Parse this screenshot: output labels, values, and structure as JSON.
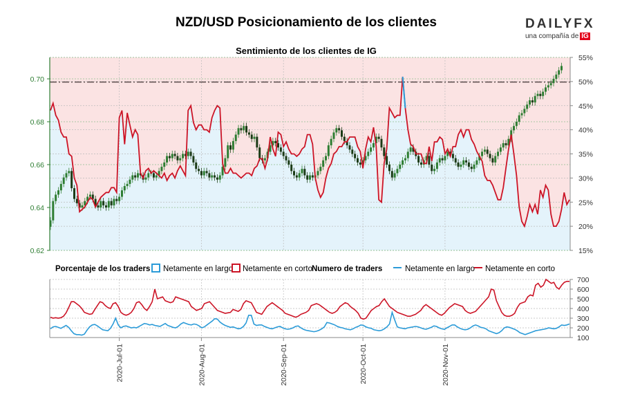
{
  "header": {
    "title": "NZD/USD Posicionamiento de los clientes",
    "subtitle": "Sentimiento de los clientes de IG",
    "logo_word": "DAILYFX",
    "logo_sub": "una compañía de",
    "logo_ig": "IG"
  },
  "colors": {
    "long": "#2b9bd8",
    "short": "#cc1426",
    "candle_up": "#2e7d32",
    "candle_down": "#1b3b16",
    "long_fill": "#e4f3fb",
    "short_fill": "#fbe3e3",
    "left_axis": "#2e7d32"
  },
  "chart_data": [
    {
      "type": "candlestick",
      "title": "Sentimiento de los clientes de IG",
      "left_axis": {
        "ticks": [
          "0.70",
          "0.68",
          "0.66",
          "0.64",
          "0.62"
        ],
        "ylim": [
          0.62,
          0.71
        ]
      },
      "right_axis": {
        "ticks": [
          "55%",
          "50%",
          "45%",
          "40%",
          "35%",
          "30%",
          "25%",
          "20%",
          "15%"
        ],
        "ylim": [
          15,
          55
        ]
      },
      "x_ticks": [
        "2020-Jul-01",
        "2020-Aug-01",
        "2020-Sep-01",
        "2020-Oct-01",
        "2020-Nov-01"
      ],
      "grid": true,
      "reference_line_price": 0.6985,
      "short_percent": [
        44,
        45.5,
        43,
        42,
        39.5,
        38.5,
        38.5,
        35,
        34.5,
        30,
        28.5,
        23,
        23.5,
        24,
        25,
        26,
        25.5,
        24,
        25,
        26,
        26.5,
        27,
        27,
        28,
        28,
        27,
        42.5,
        44,
        37,
        43.5,
        41,
        38.5,
        40,
        39,
        31,
        30,
        31.5,
        32,
        31,
        31.5,
        31,
        30.5,
        30,
        31,
        29.5,
        30.5,
        31,
        30,
        31.5,
        32.5,
        31.5,
        30.5,
        44,
        45,
        41.5,
        40,
        41,
        41,
        40,
        40,
        39.5,
        42.5,
        44,
        45,
        44.5,
        33,
        31,
        31,
        32,
        31,
        31,
        30.5,
        30,
        30.5,
        31,
        31,
        30.5,
        32,
        32.5,
        34,
        34,
        32,
        34,
        38.5,
        36,
        34.5,
        39.5,
        39,
        36.5,
        37.5,
        36,
        35,
        35,
        34.5,
        35,
        36,
        36.5,
        39,
        39,
        37,
        30,
        27.5,
        26,
        27,
        30,
        32,
        33,
        35,
        35.5,
        36.5,
        36.5,
        37.5,
        37.5,
        38.5,
        38.5,
        38.5,
        36.5,
        35.5,
        32,
        36,
        38.5,
        37.5,
        40.5,
        36.5,
        25.5,
        25,
        33,
        36,
        44.5,
        43.5,
        42.5,
        43,
        43,
        51,
        44.5,
        40,
        37,
        36.5,
        35,
        35,
        35,
        33,
        33,
        36.5,
        33.5,
        37.5,
        37.5,
        38.5,
        38,
        35,
        36,
        34.5,
        36.5,
        36.5,
        39,
        40,
        38.5,
        40,
        40,
        38,
        37,
        35.5,
        34.5,
        33.5,
        30.5,
        29.5,
        29.5,
        28.5,
        27,
        25.5,
        25.5,
        28,
        32,
        36,
        39,
        35,
        30.5,
        24,
        21,
        20,
        22,
        24.5,
        23,
        24.5,
        22.5,
        27.5,
        26,
        28.5,
        27.5,
        22.5,
        20,
        20,
        21,
        23.5,
        27,
        24.5,
        25.5
      ],
      "ohlc_close": [
        0.634,
        0.643,
        0.646,
        0.648,
        0.651,
        0.654,
        0.656,
        0.657,
        0.649,
        0.644,
        0.642,
        0.64,
        0.641,
        0.643,
        0.645,
        0.646,
        0.644,
        0.641,
        0.64,
        0.643,
        0.641,
        0.64,
        0.643,
        0.641,
        0.644,
        0.643,
        0.645,
        0.648,
        0.65,
        0.651,
        0.653,
        0.655,
        0.654,
        0.656,
        0.655,
        0.653,
        0.654,
        0.656,
        0.656,
        0.654,
        0.655,
        0.657,
        0.659,
        0.661,
        0.664,
        0.663,
        0.665,
        0.664,
        0.662,
        0.663,
        0.665,
        0.664,
        0.666,
        0.664,
        0.661,
        0.658,
        0.657,
        0.655,
        0.657,
        0.656,
        0.654,
        0.655,
        0.654,
        0.653,
        0.655,
        0.659,
        0.663,
        0.669,
        0.667,
        0.671,
        0.674,
        0.677,
        0.676,
        0.678,
        0.675,
        0.674,
        0.672,
        0.673,
        0.668,
        0.663,
        0.662,
        0.663,
        0.666,
        0.669,
        0.671,
        0.67,
        0.668,
        0.666,
        0.664,
        0.662,
        0.66,
        0.657,
        0.655,
        0.654,
        0.656,
        0.658,
        0.655,
        0.653,
        0.655,
        0.654,
        0.655,
        0.657,
        0.659,
        0.662,
        0.664,
        0.669,
        0.672,
        0.675,
        0.677,
        0.676,
        0.673,
        0.671,
        0.669,
        0.667,
        0.665,
        0.663,
        0.661,
        0.66,
        0.662,
        0.664,
        0.666,
        0.668,
        0.67,
        0.673,
        0.672,
        0.668,
        0.664,
        0.66,
        0.657,
        0.654,
        0.656,
        0.658,
        0.66,
        0.662,
        0.663,
        0.666,
        0.668,
        0.666,
        0.664,
        0.661,
        0.66,
        0.662,
        0.664,
        0.66,
        0.657,
        0.658,
        0.661,
        0.663,
        0.662,
        0.664,
        0.666,
        0.665,
        0.663,
        0.661,
        0.659,
        0.66,
        0.662,
        0.661,
        0.659,
        0.658,
        0.66,
        0.662,
        0.664,
        0.666,
        0.667,
        0.665,
        0.663,
        0.661,
        0.664,
        0.666,
        0.668,
        0.67,
        0.669,
        0.672,
        0.676,
        0.678,
        0.68,
        0.683,
        0.684,
        0.686,
        0.688,
        0.69,
        0.689,
        0.692,
        0.693,
        0.692,
        0.694,
        0.696,
        0.697,
        0.698,
        0.7,
        0.702,
        0.704,
        0.706
      ]
    },
    {
      "type": "line",
      "legend_percent": {
        "title": "Porcentaje de los traders",
        "long_label": "Netamente en largo",
        "short_label": "Netamente en corto"
      },
      "legend_count": {
        "title": "Numero de traders",
        "long_label": "Netamente en largo",
        "short_label": "Netamente en corto"
      },
      "right_axis": {
        "ticks": [
          "700",
          "600",
          "500",
          "400",
          "300",
          "200",
          "100"
        ],
        "ylim": [
          100,
          700
        ]
      },
      "series": [
        {
          "name": "Netamente en largo",
          "values": [
            190,
            210,
            215,
            205,
            195,
            210,
            225,
            205,
            170,
            140,
            130,
            130,
            125,
            135,
            175,
            210,
            230,
            235,
            220,
            200,
            180,
            175,
            170,
            195,
            240,
            300,
            230,
            200,
            215,
            220,
            210,
            200,
            205,
            200,
            215,
            230,
            245,
            240,
            230,
            235,
            225,
            220,
            215,
            230,
            245,
            225,
            215,
            205,
            200,
            215,
            240,
            255,
            245,
            235,
            230,
            240,
            235,
            220,
            200,
            210,
            230,
            250,
            270,
            295,
            290,
            260,
            240,
            225,
            215,
            205,
            210,
            200,
            190,
            195,
            215,
            250,
            330,
            330,
            240,
            225,
            230,
            230,
            215,
            205,
            195,
            190,
            200,
            210,
            215,
            200,
            190,
            185,
            190,
            200,
            215,
            220,
            200,
            185,
            175,
            170,
            165,
            160,
            165,
            175,
            190,
            210,
            255,
            250,
            240,
            230,
            215,
            205,
            200,
            190,
            185,
            180,
            190,
            205,
            215,
            230,
            225,
            210,
            200,
            195,
            180,
            175,
            170,
            175,
            190,
            210,
            240,
            360,
            280,
            210,
            200,
            195,
            190,
            200,
            205,
            210,
            215,
            210,
            200,
            190,
            185,
            195,
            205,
            220,
            215,
            200,
            190,
            185,
            200,
            215,
            230,
            230,
            210,
            195,
            185,
            180,
            185,
            200,
            220,
            230,
            220,
            205,
            200,
            190,
            170,
            160,
            150,
            140,
            150,
            170,
            200,
            210,
            205,
            195,
            185,
            170,
            150,
            140,
            130,
            140,
            150,
            160,
            170,
            175,
            180,
            185,
            190,
            200,
            195,
            190,
            195,
            210,
            230,
            225,
            230,
            240
          ]
        },
        {
          "name": "Netamente en corto",
          "values": [
            310,
            300,
            305,
            300,
            305,
            320,
            355,
            410,
            470,
            470,
            450,
            430,
            400,
            360,
            350,
            340,
            345,
            390,
            430,
            470,
            460,
            430,
            410,
            400,
            450,
            460,
            420,
            360,
            340,
            330,
            340,
            360,
            400,
            460,
            470,
            440,
            400,
            380,
            420,
            470,
            600,
            500,
            510,
            520,
            480,
            470,
            460,
            470,
            520,
            510,
            500,
            490,
            480,
            470,
            420,
            400,
            380,
            390,
            400,
            450,
            460,
            470,
            440,
            410,
            380,
            370,
            360,
            350,
            355,
            360,
            390,
            380,
            370,
            390,
            450,
            480,
            470,
            460,
            410,
            360,
            350,
            340,
            380,
            420,
            440,
            460,
            440,
            420,
            400,
            380,
            350,
            340,
            330,
            320,
            310,
            320,
            340,
            350,
            360,
            380,
            430,
            440,
            450,
            440,
            420,
            400,
            380,
            360,
            350,
            360,
            380,
            420,
            440,
            460,
            450,
            420,
            400,
            380,
            350,
            300,
            290,
            300,
            340,
            380,
            400,
            420,
            430,
            470,
            500,
            460,
            420,
            400,
            380,
            360,
            350,
            340,
            330,
            320,
            320,
            330,
            340,
            360,
            380,
            420,
            440,
            420,
            400,
            380,
            360,
            340,
            330,
            350,
            380,
            410,
            430,
            450,
            440,
            430,
            420,
            380,
            360,
            350,
            360,
            370,
            400,
            430,
            460,
            490,
            520,
            600,
            590,
            480,
            420,
            360,
            330,
            320,
            320,
            330,
            350,
            410,
            450,
            460,
            470,
            520,
            540,
            530,
            640,
            660,
            620,
            640,
            700,
            680,
            660,
            670,
            620,
            600,
            640,
            670,
            680,
            680
          ]
        }
      ]
    }
  ]
}
